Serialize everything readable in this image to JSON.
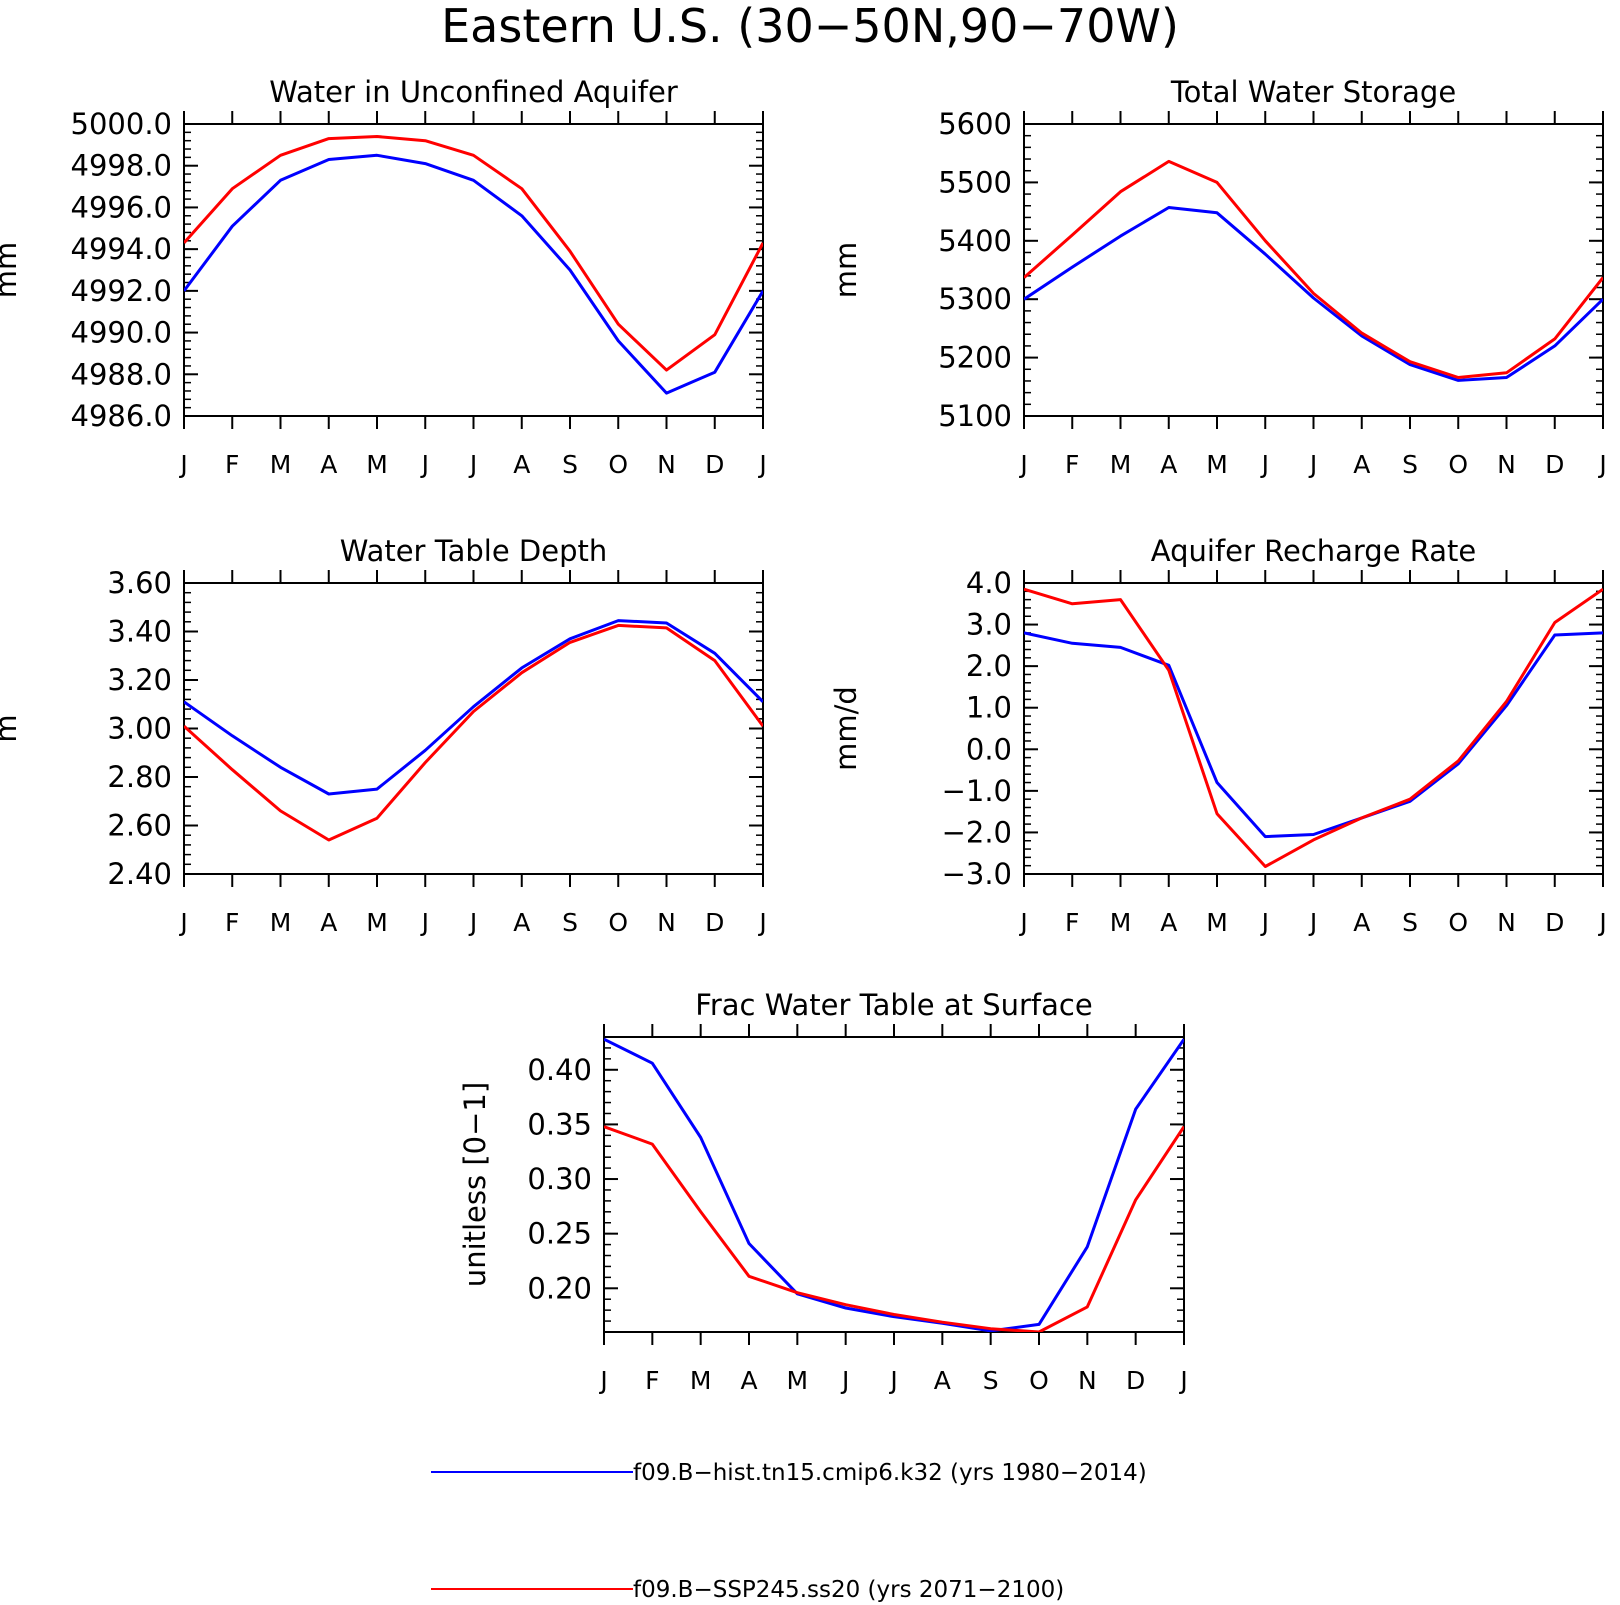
{
  "page_title": "Eastern U.S. (30−50N,90−70W)",
  "months": [
    "J",
    "F",
    "M",
    "A",
    "M",
    "J",
    "J",
    "A",
    "S",
    "O",
    "N",
    "D",
    "J"
  ],
  "series_styles": [
    {
      "color": "#0000ff"
    },
    {
      "color": "#ff0000"
    }
  ],
  "legend": [
    {
      "label": "f09.B−hist.tn15.cmip6.k32 (yrs 1980−2014)",
      "color": "#0000ff"
    },
    {
      "label": "f09.B−SSP245.ss20 (yrs 2071−2100)",
      "color": "#ff0000"
    }
  ],
  "chart_data": [
    {
      "type": "line",
      "title": "Water in Unconfined Aquifer",
      "ylabel": "mm",
      "ylim": [
        4986,
        5000
      ],
      "yticks": [
        {
          "value": 5000,
          "label": "5000.0"
        },
        {
          "value": 4998,
          "label": "4998.0"
        },
        {
          "value": 4996,
          "label": "4996.0"
        },
        {
          "value": 4994,
          "label": "4994.0"
        },
        {
          "value": 4992,
          "label": "4992.0"
        },
        {
          "value": 4990,
          "label": "4990.0"
        },
        {
          "value": 4988,
          "label": "4988.0"
        },
        {
          "value": 4986,
          "label": "4986.0"
        }
      ],
      "series": [
        {
          "values": [
            4992.0,
            4995.1,
            4997.3,
            4998.3,
            4998.5,
            4998.1,
            4997.3,
            4995.6,
            4993.0,
            4989.6,
            4987.1,
            4988.1,
            4992.0
          ]
        },
        {
          "values": [
            4994.3,
            4996.9,
            4998.5,
            4999.3,
            4999.4,
            4999.2,
            4998.5,
            4996.9,
            4993.9,
            4990.4,
            4988.2,
            4989.9,
            4994.3
          ]
        }
      ]
    },
    {
      "type": "line",
      "title": "Total Water Storage",
      "ylabel": "mm",
      "ylim": [
        5100,
        5600
      ],
      "yticks": [
        {
          "value": 5600,
          "label": "5600"
        },
        {
          "value": 5500,
          "label": "5500"
        },
        {
          "value": 5400,
          "label": "5400"
        },
        {
          "value": 5300,
          "label": "5300"
        },
        {
          "value": 5200,
          "label": "5200"
        },
        {
          "value": 5100,
          "label": "5100"
        }
      ],
      "series": [
        {
          "values": [
            5300,
            5355,
            5408,
            5457,
            5448,
            5377,
            5302,
            5237,
            5188,
            5161,
            5166,
            5220,
            5300
          ]
        },
        {
          "values": [
            5337,
            5410,
            5484,
            5536,
            5500,
            5400,
            5310,
            5242,
            5193,
            5166,
            5174,
            5232,
            5337
          ]
        }
      ]
    },
    {
      "type": "line",
      "title": "Water Table Depth",
      "ylabel": "m",
      "ylim": [
        2.4,
        3.6
      ],
      "yticks": [
        {
          "value": 3.6,
          "label": "3.60"
        },
        {
          "value": 3.4,
          "label": "3.40"
        },
        {
          "value": 3.2,
          "label": "3.20"
        },
        {
          "value": 3.0,
          "label": "3.00"
        },
        {
          "value": 2.8,
          "label": "2.80"
        },
        {
          "value": 2.6,
          "label": "2.60"
        },
        {
          "value": 2.4,
          "label": "2.40"
        }
      ],
      "series": [
        {
          "values": [
            3.11,
            2.97,
            2.84,
            2.73,
            2.75,
            2.91,
            3.09,
            3.25,
            3.37,
            3.445,
            3.435,
            3.31,
            3.11
          ]
        },
        {
          "values": [
            3.01,
            2.83,
            2.66,
            2.54,
            2.63,
            2.86,
            3.07,
            3.23,
            3.355,
            3.425,
            3.415,
            3.28,
            3.01
          ]
        }
      ]
    },
    {
      "type": "line",
      "title": "Aquifer Recharge Rate",
      "ylabel": "mm/d",
      "ylim": [
        -3.0,
        4.0
      ],
      "yticks": [
        {
          "value": 4,
          "label": "4.0"
        },
        {
          "value": 3,
          "label": "3.0"
        },
        {
          "value": 2,
          "label": "2.0"
        },
        {
          "value": 1,
          "label": "1.0"
        },
        {
          "value": 0,
          "label": "0.0"
        },
        {
          "value": -1,
          "label": "−1.0"
        },
        {
          "value": -2,
          "label": "−2.0"
        },
        {
          "value": -3,
          "label": "−3.0"
        }
      ],
      "series": [
        {
          "values": [
            2.8,
            2.55,
            2.45,
            2.02,
            -0.8,
            -2.1,
            -2.05,
            -1.65,
            -1.25,
            -0.35,
            1.05,
            2.75,
            2.8
          ]
        },
        {
          "values": [
            3.85,
            3.5,
            3.6,
            1.9,
            -1.55,
            -2.82,
            -2.18,
            -1.65,
            -1.2,
            -0.28,
            1.15,
            3.05,
            3.85
          ]
        }
      ]
    },
    {
      "type": "line",
      "title": "Frac Water Table at Surface",
      "ylabel": "unitless [0−1]",
      "ylim": [
        0.16,
        0.43
      ],
      "yticks": [
        {
          "value": 0.4,
          "label": "0.40"
        },
        {
          "value": 0.35,
          "label": "0.35"
        },
        {
          "value": 0.3,
          "label": "0.30"
        },
        {
          "value": 0.25,
          "label": "0.25"
        },
        {
          "value": 0.2,
          "label": "0.20"
        }
      ],
      "series": [
        {
          "values": [
            0.428,
            0.406,
            0.338,
            0.241,
            0.195,
            0.182,
            0.174,
            0.168,
            0.161,
            0.167,
            0.238,
            0.364,
            0.428
          ]
        },
        {
          "values": [
            0.348,
            0.332,
            0.27,
            0.211,
            0.196,
            0.185,
            0.176,
            0.169,
            0.163,
            0.16,
            0.183,
            0.281,
            0.348
          ]
        }
      ]
    }
  ]
}
